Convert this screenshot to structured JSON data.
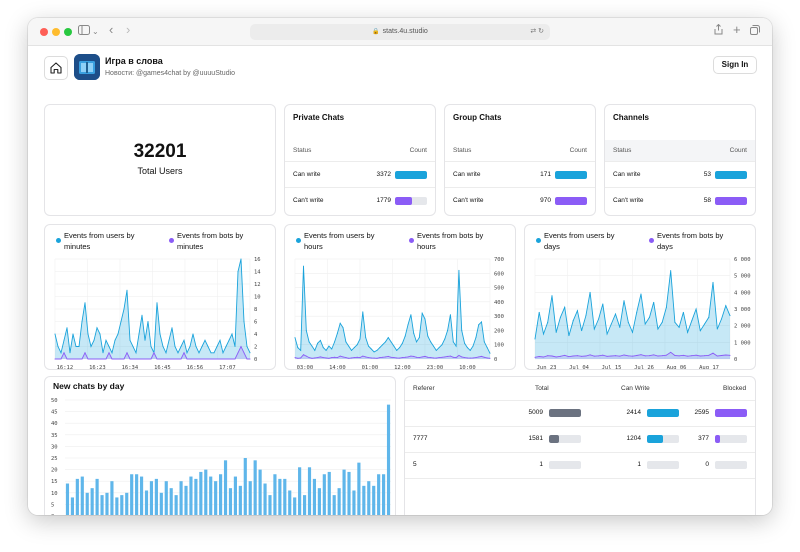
{
  "browser": {
    "url": "stats.4u.studio"
  },
  "header": {
    "title": "Игра в слова",
    "subtitle": "Новости: @games4chat by @uuuuStudio",
    "sign_in": "Sign In"
  },
  "total": {
    "value": "32201",
    "label": "Total Users"
  },
  "stats": [
    {
      "title": "Private Chats",
      "status_label": "Status",
      "count_label": "Count",
      "rows": [
        {
          "label": "Can write",
          "value": "3372",
          "fill": 1.0,
          "color": "#1aa3db"
        },
        {
          "label": "Can't write",
          "value": "1779",
          "fill": 0.53,
          "color": "#8b5cf6"
        }
      ]
    },
    {
      "title": "Group Chats",
      "status_label": "Status",
      "count_label": "Count",
      "rows": [
        {
          "label": "Can write",
          "value": "171",
          "fill": 1.0,
          "color": "#1aa3db"
        },
        {
          "label": "Can't write",
          "value": "970",
          "fill": 1.0,
          "color": "#8b5cf6"
        }
      ]
    },
    {
      "title": "Channels",
      "status_label": "Status",
      "count_label": "Count",
      "rows": [
        {
          "label": "Can write",
          "value": "53",
          "fill": 1.0,
          "color": "#1aa3db"
        },
        {
          "label": "Can't write",
          "value": "58",
          "fill": 1.0,
          "color": "#8b5cf6"
        }
      ]
    }
  ],
  "colors": {
    "users": "#1aa3db",
    "bots": "#8b5cf6",
    "area": "#c6e2f5",
    "bar": "#5fb6ea",
    "gray_bar": "#6b7280"
  },
  "chart_data": [
    {
      "type": "area",
      "legend": [
        "Events from users by minutes",
        "Events from bots by minutes"
      ],
      "x_labels": [
        "16:12",
        "16:23",
        "16:34",
        "16:45",
        "16:56",
        "17:07"
      ],
      "y_ticks": [
        0,
        2,
        4,
        6,
        8,
        10,
        12,
        14,
        16
      ],
      "ylim": [
        0,
        16
      ],
      "series": [
        {
          "name": "Events from users by minutes",
          "values": [
            4,
            2,
            1,
            3,
            5,
            1,
            4,
            2,
            2,
            6,
            9,
            4,
            2,
            3,
            5,
            4,
            1,
            3,
            2,
            1,
            3,
            4,
            6,
            8,
            11,
            3,
            2,
            1,
            4,
            7,
            3,
            6,
            2,
            1,
            9,
            4,
            2,
            1,
            3,
            5,
            2,
            1,
            2,
            3,
            1,
            2,
            4,
            2,
            1,
            2,
            3,
            2,
            1,
            1,
            2,
            3,
            1,
            2,
            3,
            4,
            2,
            14,
            16,
            6,
            2,
            1
          ]
        },
        {
          "name": "Events from bots by minutes",
          "values": [
            0,
            0,
            0,
            1,
            0,
            0,
            0,
            0,
            0,
            0,
            1,
            0,
            0,
            0,
            0,
            0,
            0,
            0,
            1,
            0,
            0,
            0,
            0,
            0,
            1,
            0,
            0,
            0,
            0,
            0,
            0,
            0,
            0,
            1,
            0,
            0,
            0,
            0,
            0,
            0,
            0,
            0,
            0,
            1,
            0,
            0,
            0,
            0,
            0,
            0,
            0,
            0,
            0,
            0,
            0,
            0,
            0,
            0,
            0,
            0,
            0,
            1,
            2,
            1,
            0,
            0
          ]
        }
      ]
    },
    {
      "type": "area",
      "legend": [
        "Events from users by hours",
        "Events from bots by hours"
      ],
      "x_labels": [
        "03:00",
        "14:00",
        "01:00",
        "12:00",
        "23:00",
        "10:00"
      ],
      "y_ticks": [
        0,
        100,
        200,
        300,
        400,
        500,
        600,
        700
      ],
      "ylim": [
        0,
        700
      ],
      "series": [
        {
          "name": "Events from users by hours",
          "values": [
            150,
            80,
            60,
            650,
            200,
            120,
            90,
            60,
            110,
            130,
            80,
            60,
            90,
            70,
            120,
            180,
            250,
            220,
            120,
            90,
            60,
            80,
            100,
            140,
            330,
            150,
            90,
            70,
            50,
            60,
            80,
            100,
            120,
            150,
            120,
            90,
            60,
            80,
            110,
            160,
            240,
            310,
            180,
            120,
            150,
            320,
            280,
            160,
            120,
            90,
            60,
            80,
            100,
            140,
            200,
            310,
            120,
            90,
            620,
            200,
            110,
            80,
            60,
            90,
            150,
            240,
            260,
            120,
            80,
            40
          ]
        },
        {
          "name": "Events from bots by hours",
          "values": [
            10,
            5,
            8,
            30,
            20,
            10,
            5,
            8,
            10,
            15,
            10,
            8,
            5,
            10,
            12,
            10,
            20,
            15,
            10,
            5,
            8,
            10,
            12,
            10,
            20,
            15,
            10,
            8,
            6,
            5,
            10,
            12,
            15,
            18,
            12,
            10,
            8,
            6,
            10,
            12,
            15,
            20,
            18,
            12,
            10,
            15,
            18,
            12,
            10,
            8,
            6,
            10,
            12,
            15,
            18,
            20,
            12,
            10,
            25,
            15,
            10,
            8,
            6,
            8,
            10,
            15,
            18,
            12,
            8,
            5
          ]
        }
      ]
    },
    {
      "type": "area",
      "legend": [
        "Events from users by days",
        "Events from bots by days"
      ],
      "x_labels": [
        "Jun 23",
        "Jul 04",
        "Jul 15",
        "Jul 26",
        "Aug 06",
        "Aug 17"
      ],
      "y_ticks": [
        "0",
        "1 000",
        "2 000",
        "3 000",
        "4 000",
        "5 000",
        "6 000"
      ],
      "ylim": [
        0,
        6000
      ],
      "series": [
        {
          "name": "Events from users by days",
          "values": [
            1200,
            2800,
            1500,
            2200,
            3800,
            1600,
            2500,
            3100,
            1400,
            2300,
            2900,
            1700,
            2600,
            4000,
            1800,
            2400,
            3300,
            1500,
            2100,
            2700,
            1900,
            3500,
            2200,
            1600,
            2800,
            3900,
            2100,
            2500,
            3400,
            1800,
            2200,
            3100,
            5300,
            2200,
            1900,
            2800,
            1600,
            2300,
            3000,
            1700,
            2100,
            2500,
            4600,
            1800,
            2400,
            3200,
            2600
          ]
        },
        {
          "name": "Events from bots by days",
          "values": [
            100,
            150,
            120,
            200,
            180,
            120,
            160,
            220,
            140,
            180,
            200,
            160,
            180,
            250,
            170,
            190,
            230,
            160,
            180,
            200,
            170,
            240,
            190,
            170,
            210,
            260,
            190,
            200,
            250,
            180,
            200,
            230,
            400,
            210,
            190,
            220,
            170,
            200,
            230,
            180,
            200,
            220,
            350,
            180,
            210,
            240,
            220
          ]
        }
      ]
    },
    {
      "type": "bar",
      "title": "New chats by day",
      "x_labels": [
        "Jun 23",
        "Jul 04",
        "Jul 15",
        "Jul 26",
        "Aug 06",
        "Aug 17"
      ],
      "y_ticks": [
        0,
        5,
        10,
        15,
        20,
        25,
        30,
        35,
        40,
        45,
        50
      ],
      "ylim": [
        0,
        50
      ],
      "series": [
        {
          "name": "New chats",
          "values": [
            14,
            8,
            16,
            17,
            10,
            12,
            16,
            9,
            10,
            15,
            8,
            9,
            10,
            18,
            18,
            17,
            11,
            15,
            16,
            10,
            15,
            12,
            9,
            15,
            13,
            17,
            16,
            19,
            20,
            17,
            15,
            18,
            24,
            12,
            17,
            13,
            25,
            15,
            24,
            20,
            14,
            9,
            18,
            16,
            16,
            11,
            8,
            21,
            9,
            21,
            16,
            12,
            18,
            19,
            9,
            12,
            20,
            19,
            11,
            23,
            13,
            15,
            13,
            18,
            18,
            48
          ]
        }
      ]
    }
  ],
  "referer": {
    "headers": {
      "referer": "Referer",
      "total": "Total",
      "can_write": "Can Write",
      "blocked": "Blocked"
    },
    "rows": [
      {
        "referer": "",
        "total": "5009",
        "total_fill": 1.0,
        "can_write": "2414",
        "cw_fill": 1.0,
        "blocked": "2595",
        "bl_fill": 1.0
      },
      {
        "referer": "7777",
        "total": "1581",
        "total_fill": 0.32,
        "can_write": "1204",
        "cw_fill": 0.5,
        "blocked": "377",
        "bl_fill": 0.15
      },
      {
        "referer": "5",
        "total": "1",
        "total_fill": 0.0,
        "can_write": "1",
        "cw_fill": 0.0,
        "blocked": "0",
        "bl_fill": 0.0
      }
    ]
  }
}
